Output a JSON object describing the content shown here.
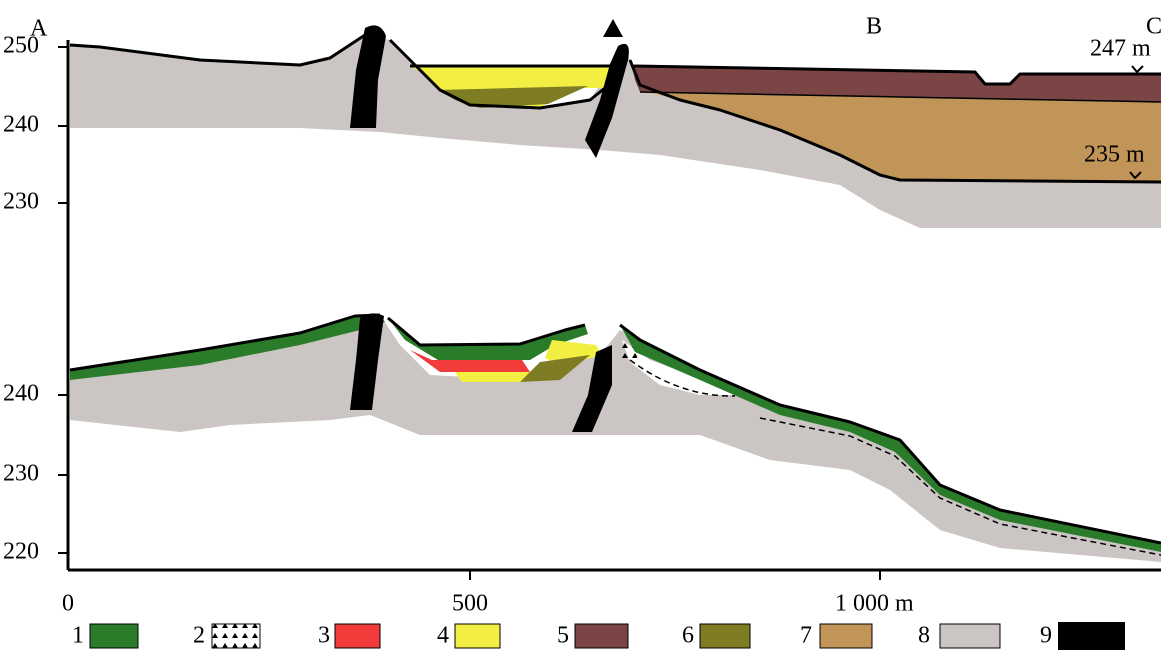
{
  "section_labels": [
    "A",
    "B",
    "C"
  ],
  "top_axis": [
    "250",
    "240",
    "230"
  ],
  "bottom_axis": [
    "240",
    "230",
    "220"
  ],
  "annotations": [
    "247 m",
    "235 m"
  ],
  "x_axis": [
    "0",
    "500",
    "1 000 m"
  ],
  "legend": [
    "1",
    "2",
    "3",
    "4",
    "5",
    "6",
    "7",
    "8",
    "9"
  ]
}
